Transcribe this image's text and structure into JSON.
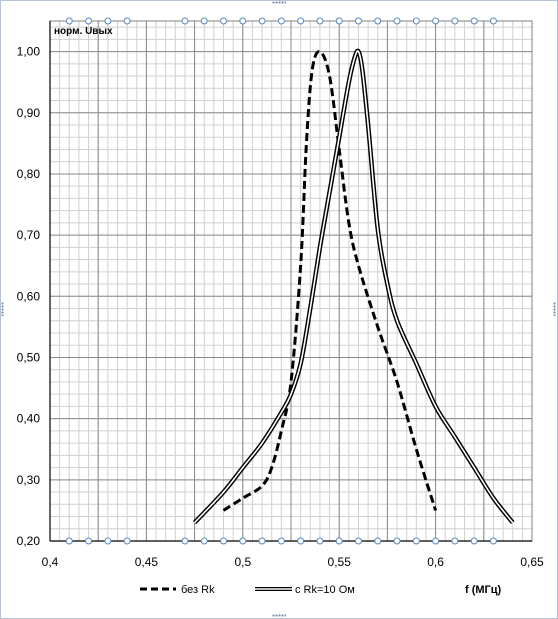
{
  "chart_data": {
    "type": "line",
    "ylabel": "норм. Uвых",
    "xlabel": "f (МГц)",
    "xlim": [
      0.4,
      0.65
    ],
    "ylim": [
      0.2,
      1.05
    ],
    "x_ticks": [
      0.4,
      0.45,
      0.5,
      0.55,
      0.6,
      0.65
    ],
    "x_tick_labels": [
      "0,4",
      "0,45",
      "0,5",
      "0,55",
      "0,6",
      "0,65"
    ],
    "y_ticks": [
      0.2,
      0.3,
      0.4,
      0.5,
      0.6,
      0.7,
      0.8,
      0.9,
      1.0
    ],
    "y_tick_labels": [
      "0,20",
      "0,30",
      "0,40",
      "0,50",
      "0,60",
      "0,70",
      "0,80",
      "0,90",
      "1,00"
    ],
    "marker_x": [
      0.41,
      0.42,
      0.43,
      0.44,
      0.47,
      0.48,
      0.49,
      0.5,
      0.51,
      0.52,
      0.53,
      0.54,
      0.55,
      0.56,
      0.57,
      0.58,
      0.59,
      0.6,
      0.61,
      0.62,
      0.63
    ],
    "grid": true,
    "legend_position": "bottom",
    "series": [
      {
        "name": "без Rk",
        "style": "dashed",
        "color": "#000000",
        "x": [
          0.49,
          0.5,
          0.51,
          0.515,
          0.52,
          0.525,
          0.53,
          0.533,
          0.536,
          0.54,
          0.545,
          0.55,
          0.555,
          0.56,
          0.57,
          0.58,
          0.59,
          0.6
        ],
        "y": [
          0.25,
          0.27,
          0.29,
          0.32,
          0.38,
          0.46,
          0.65,
          0.85,
          0.97,
          1.0,
          0.96,
          0.84,
          0.72,
          0.65,
          0.55,
          0.46,
          0.35,
          0.25
        ]
      },
      {
        "name": "с Rk=10 Ом",
        "style": "double",
        "color": "#000000",
        "x": [
          0.475,
          0.49,
          0.5,
          0.51,
          0.52,
          0.525,
          0.53,
          0.535,
          0.54,
          0.545,
          0.55,
          0.555,
          0.558,
          0.56,
          0.562,
          0.565,
          0.57,
          0.575,
          0.58,
          0.59,
          0.6,
          0.61,
          0.62,
          0.63,
          0.64
        ],
        "y": [
          0.23,
          0.28,
          0.32,
          0.36,
          0.41,
          0.44,
          0.49,
          0.58,
          0.68,
          0.77,
          0.86,
          0.95,
          0.99,
          1.0,
          0.97,
          0.88,
          0.71,
          0.62,
          0.56,
          0.49,
          0.42,
          0.37,
          0.32,
          0.27,
          0.23
        ]
      }
    ]
  }
}
